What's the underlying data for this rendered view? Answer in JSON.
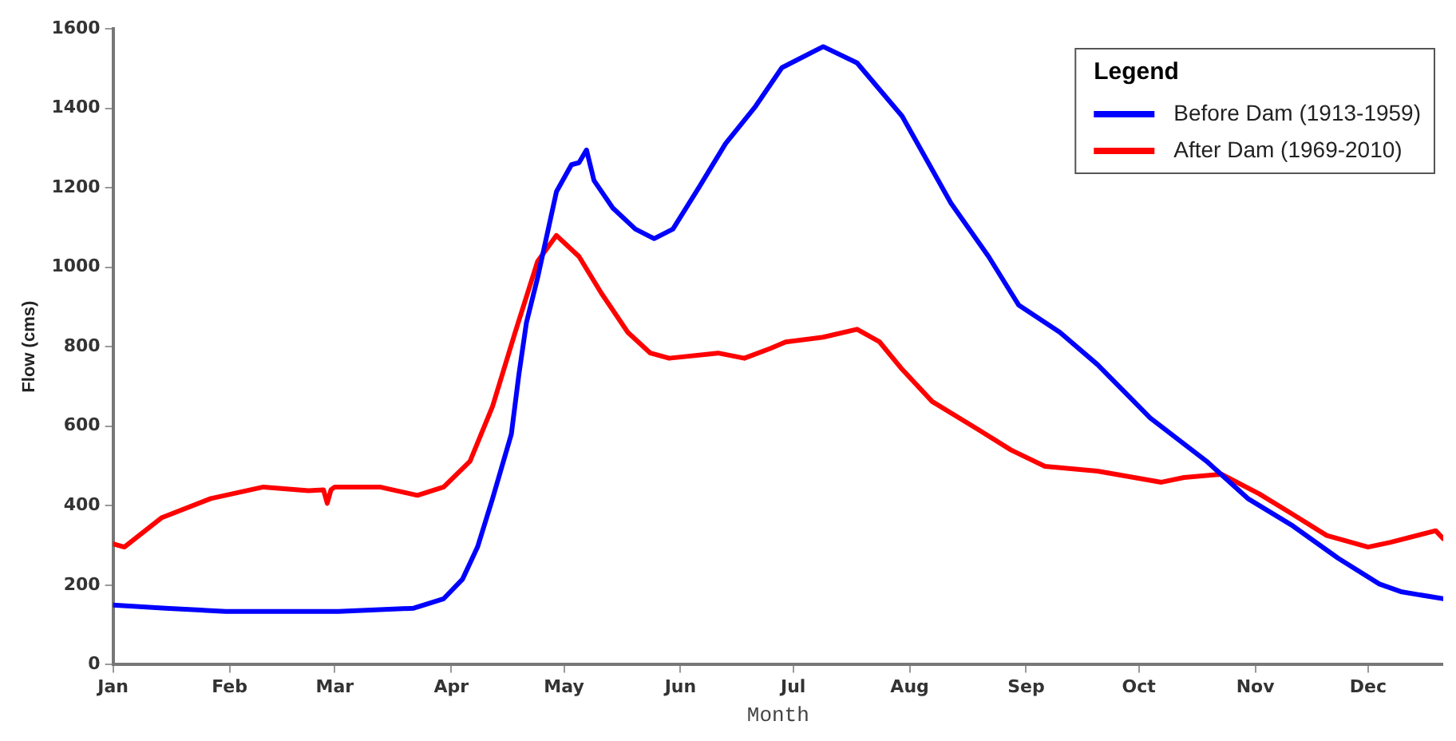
{
  "chart_data": {
    "type": "line",
    "xlabel": "Month",
    "ylabel": "Flow (cms)",
    "legend_title": "Legend",
    "legend": "top right",
    "grid": false,
    "marker": "none",
    "line_style": "solid",
    "xlim": [
      "--01-01",
      "--12-21"
    ],
    "xticks": [
      {
        "value": "--01-01",
        "label": "Jan"
      },
      {
        "value": "--02-01",
        "label": "Feb"
      },
      {
        "value": "--03-01",
        "label": "Mar"
      },
      {
        "value": "--04-01",
        "label": "Apr"
      },
      {
        "value": "--05-01",
        "label": "May"
      },
      {
        "value": "--06-01",
        "label": "Jun"
      },
      {
        "value": "--07-01",
        "label": "Jul"
      },
      {
        "value": "--08-01",
        "label": "Aug"
      },
      {
        "value": "--09-01",
        "label": "Sep"
      },
      {
        "value": "--10-01",
        "label": "Oct"
      },
      {
        "value": "--11-01",
        "label": "Nov"
      },
      {
        "value": "--12-01",
        "label": "Dec"
      }
    ],
    "ylim": [
      0,
      1600
    ],
    "yticks": [
      0,
      200,
      400,
      600,
      800,
      1000,
      1200,
      1400,
      1600
    ],
    "series": [
      {
        "name": "Before Dam (1913-1959)",
        "color": "#0000ff",
        "x": [
          "--01-01",
          "--01-15",
          "--01-31",
          "--03-02",
          "--03-22",
          "--03-30",
          "--04-04",
          "--04-08",
          "--04-12",
          "--04-17",
          "--04-19",
          "--04-21",
          "--04-24",
          "--04-29",
          "--05-03",
          "--05-05",
          "--05-07",
          "--05-09",
          "--05-14",
          "--05-20",
          "--05-25",
          "--05-30",
          "--06-06",
          "--06-13",
          "--06-21",
          "--06-28",
          "--07-09",
          "--07-18",
          "--07-30",
          "--08-12",
          "--08-22",
          "--08-30",
          "--09-10",
          "--09-20",
          "--10-04",
          "--10-19",
          "--10-30",
          "--11-11",
          "--11-23",
          "--12-04",
          "--12-10",
          "--12-21"
        ],
        "values": [
          150,
          142,
          134,
          134,
          142,
          166,
          215,
          296,
          418,
          580,
          730,
          860,
          974,
          1190,
          1258,
          1263,
          1295,
          1218,
          1149,
          1096,
          1072,
          1096,
          1202,
          1311,
          1405,
          1502,
          1555,
          1514,
          1380,
          1161,
          1027,
          905,
          836,
          755,
          621,
          512,
          418,
          349,
          268,
          203,
          183,
          166
        ]
      },
      {
        "name": "After Dam (1969-2010)",
        "color": "#ff0000",
        "x": [
          "--01-01",
          "--01-04",
          "--01-14",
          "--01-27",
          "--02-10",
          "--02-22",
          "--02-26",
          "--02-27",
          "--02-28",
          "--03-01",
          "--03-13",
          "--03-23",
          "--03-30",
          "--04-06",
          "--04-12",
          "--04-18",
          "--04-24",
          "--04-29",
          "--05-05",
          "--05-11",
          "--05-18",
          "--05-24",
          "--05-29",
          "--06-11",
          "--06-18",
          "--06-25",
          "--06-29",
          "--07-09",
          "--07-18",
          "--07-24",
          "--07-30",
          "--08-07",
          "--08-19",
          "--08-28",
          "--09-06",
          "--09-20",
          "--10-07",
          "--10-13",
          "--10-23",
          "--11-02",
          "--11-11",
          "--11-20",
          "--12-01",
          "--12-07",
          "--12-19",
          "--12-21"
        ],
        "values": [
          304,
          296,
          370,
          418,
          447,
          438,
          440,
          406,
          440,
          447,
          447,
          426,
          447,
          512,
          650,
          836,
          1015,
          1080,
          1027,
          934,
          836,
          784,
          771,
          784,
          771,
          796,
          812,
          824,
          844,
          812,
          743,
          662,
          593,
          540,
          499,
          487,
          459,
          471,
          479,
          430,
          378,
          325,
          296,
          308,
          337,
          317
        ]
      }
    ]
  }
}
